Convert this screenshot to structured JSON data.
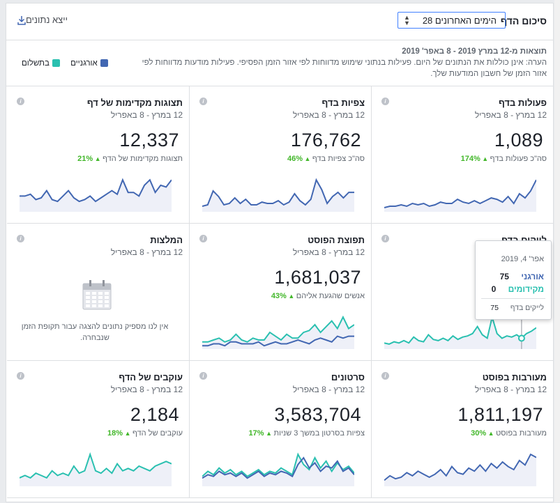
{
  "header": {
    "summary_title": "סיכום הדף",
    "period_value": "28 הימים האחרונים",
    "export_label": "ייצא נתונים"
  },
  "notes": {
    "range_line": "תוצאות מ-12 במרץ 2019 - 8 באפר' 2019",
    "note_line": "הערה: אינן כוללות את הנתונים של היום. פעילות בנתוני שימוש מדווחות לפי אזור הזמן הפסיפי. פעילות מודעות מדווחות לפי אזור הזמן של חשבון המודעות שלך."
  },
  "legend": {
    "organic_label": "אורגניים",
    "paid_label": "בתשלום",
    "organic_color": "#4267b2",
    "paid_color": "#2ac0b0"
  },
  "cards": [
    {
      "title": "פעולות בדף",
      "date": "12 במרץ - 8 באפריל",
      "value": "1,089",
      "sub": "סה\"כ פעולות בדף",
      "pct": "174%",
      "series": "organic",
      "data": [
        2,
        3,
        3,
        4,
        3,
        5,
        4,
        5,
        3,
        4,
        6,
        5,
        5,
        8,
        6,
        5,
        7,
        5,
        7,
        9,
        8,
        6,
        10,
        5,
        12,
        9,
        14,
        22
      ]
    },
    {
      "title": "צפיות בדף",
      "date": "12 במרץ - 8 באפריל",
      "value": "176,762",
      "sub": "סה\"כ צפיות בדף",
      "pct": "46%",
      "series": "organic",
      "data": [
        3,
        4,
        14,
        10,
        4,
        5,
        9,
        5,
        8,
        4,
        4,
        6,
        5,
        5,
        7,
        4,
        6,
        12,
        7,
        4,
        8,
        22,
        15,
        5,
        10,
        13,
        9,
        13,
        13
      ]
    },
    {
      "title": "תצוגות מקדימות של דף",
      "date": "12 במרץ - 8 באפריל",
      "value": "12,337",
      "sub": "תצוגות מקדימות של הדף",
      "pct": "21%",
      "series": "organic",
      "data": [
        8,
        8,
        9,
        6,
        7,
        11,
        6,
        5,
        8,
        11,
        7,
        5,
        6,
        8,
        5,
        7,
        9,
        11,
        9,
        17,
        10,
        10,
        8,
        14,
        17,
        10,
        14,
        13,
        17
      ]
    },
    {
      "title": "לייקים בדף",
      "date": "12 במרץ - 8 באפריל",
      "value": "",
      "sub": "",
      "pct": "",
      "series": "paid",
      "data": [
        4,
        3,
        5,
        4,
        6,
        4,
        9,
        6,
        5,
        11,
        7,
        6,
        8,
        6,
        10,
        7,
        9,
        10,
        12,
        18,
        11,
        8,
        26,
        12,
        8,
        10,
        9,
        11,
        8,
        12,
        14,
        17
      ],
      "tooltip": true
    },
    {
      "title": "תפוצת הפוסט",
      "date": "12 במרץ - 8 באפריל",
      "value": "1,681,037",
      "sub": "אנשים שהגעת אליהם",
      "pct": "43%",
      "series": "both",
      "data": [
        3,
        3,
        4,
        5,
        3,
        4,
        7,
        4,
        3,
        5,
        4,
        4,
        8,
        6,
        4,
        7,
        5,
        5,
        8,
        9,
        12,
        8,
        11,
        14,
        10,
        16,
        10,
        12
      ],
      "data2": [
        1,
        1,
        2,
        2,
        1,
        3,
        3,
        2,
        2,
        2,
        3,
        1,
        2,
        3,
        2,
        2,
        3,
        4,
        3,
        2,
        4,
        5,
        4,
        3,
        6,
        5,
        6,
        6
      ]
    },
    {
      "title": "המלצות",
      "date": "12 במרץ - 8 באפריל",
      "value": "",
      "sub": "",
      "pct": "",
      "series": "none",
      "empty": "אין לנו מספיק נתונים להצגה עבור תקופת הזמן שנבחרה."
    },
    {
      "title": "מעורבות בפוסט",
      "date": "12 במרץ - 8 באפריל",
      "value": "1,811,197",
      "sub": "מעורבות בפוסט",
      "pct": "30%",
      "series": "organic",
      "data": [
        3,
        6,
        4,
        5,
        8,
        6,
        9,
        7,
        5,
        7,
        10,
        6,
        12,
        8,
        7,
        11,
        9,
        13,
        9,
        14,
        11,
        15,
        12,
        10,
        16,
        13,
        20,
        18
      ]
    },
    {
      "title": "סרטונים",
      "date": "12 במרץ - 8 באפריל",
      "value": "3,583,704",
      "sub": "צפיות בסרטון במשך 3 שניות",
      "pct": "17%",
      "series": "both",
      "data": [
        5,
        8,
        6,
        10,
        7,
        9,
        6,
        8,
        5,
        7,
        9,
        6,
        8,
        7,
        10,
        8,
        6,
        18,
        12,
        9,
        16,
        10,
        14,
        8,
        13,
        9,
        11,
        7
      ],
      "data2": [
        4,
        6,
        5,
        8,
        6,
        7,
        5,
        7,
        4,
        6,
        8,
        5,
        7,
        6,
        8,
        7,
        5,
        12,
        16,
        10,
        13,
        8,
        11,
        10,
        14,
        8,
        10,
        6
      ]
    },
    {
      "title": "עוקבים של הדף",
      "date": "12 במרץ - 8 באפריל",
      "value": "2,184",
      "sub": "עוקבים של הדף",
      "pct": "18%",
      "series": "paid",
      "data": [
        3,
        4,
        3,
        5,
        4,
        3,
        6,
        4,
        5,
        4,
        8,
        5,
        6,
        13,
        6,
        5,
        7,
        5,
        9,
        6,
        7,
        6,
        8,
        7,
        6,
        8,
        9,
        10,
        9
      ]
    }
  ],
  "tooltip": {
    "date": "אפר' 4, 2019",
    "organic_label": "אורגני",
    "organic_value": "75",
    "paid_label": "מקידומים",
    "paid_value": "0",
    "total_label": "לייקים בדף",
    "total_value": "75"
  }
}
